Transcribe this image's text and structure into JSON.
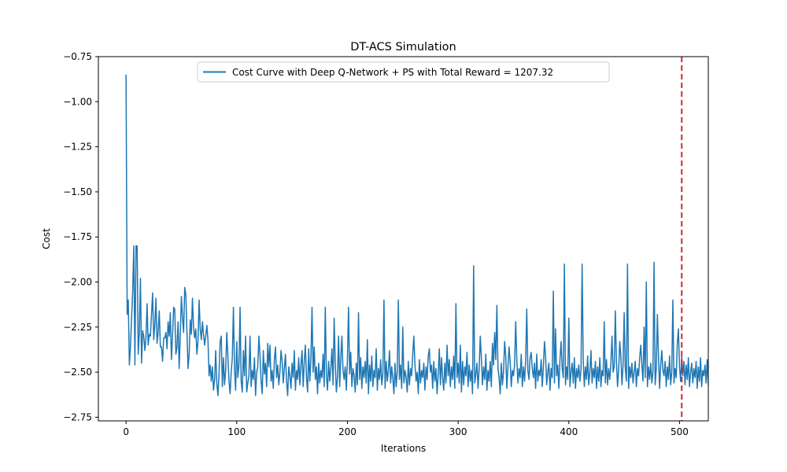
{
  "chart_data": {
    "type": "line",
    "title": "DT-ACS Simulation",
    "xlabel": "Iterations",
    "ylabel": "Cost",
    "xlim": [
      -25,
      526
    ],
    "ylim": [
      -2.77,
      -0.75
    ],
    "x_ticks": [
      0,
      100,
      200,
      300,
      400,
      500
    ],
    "x_tick_labels": [
      "0",
      "100",
      "200",
      "300",
      "400",
      "500"
    ],
    "y_ticks": [
      -2.75,
      -2.5,
      -2.25,
      -2.0,
      -1.75,
      -1.5,
      -1.25,
      -1.0,
      -0.75
    ],
    "y_tick_labels": [
      "−2.75",
      "−2.50",
      "−2.25",
      "−2.00",
      "−1.75",
      "−1.50",
      "−1.25",
      "−1.00",
      "−0.75"
    ],
    "grid": false,
    "legend_position": "upper center",
    "series": [
      {
        "name": "Cost Curve with Deep Q-Network + PS with Total Reward = 1207.32",
        "color": "#1f77b4",
        "x_start": 0,
        "x_step": 1,
        "values": [
          -0.85,
          -2.18,
          -2.1,
          -2.46,
          -2.36,
          -2.2,
          -1.8,
          -2.38,
          -2.46,
          -1.8,
          -2.17,
          -2.4,
          -2.28,
          -2.06,
          -2.45,
          -2.27,
          -2.36,
          -2.38,
          -2.31,
          -2.12,
          -2.35,
          -2.29,
          -2.3,
          -2.18,
          -2.42,
          -2.32,
          -2.24,
          -2.09,
          -2.34,
          -2.28,
          -2.16,
          -2.36,
          -2.36,
          -2.44,
          -2.31,
          -2.31,
          -2.28,
          -2.37,
          -2.22,
          -2.3,
          -2.17,
          -2.43,
          -2.3,
          -2.33,
          -2.15,
          -2.4,
          -2.36,
          -2.22,
          -2.48,
          -2.29,
          -2.03,
          -2.2,
          -2.28,
          -2.34,
          -2.07,
          -2.27,
          -2.48,
          -2.4,
          -2.21,
          -2.29,
          -2.14,
          -2.25,
          -2.31,
          -2.26,
          -2.4,
          -2.33,
          -2.3,
          -2.26,
          -2.32,
          -2.22,
          -2.29,
          -2.35,
          -2.3,
          -2.24,
          -2.32,
          -2.52,
          -2.46,
          -2.55,
          -2.47,
          -2.6,
          -2.54,
          -2.38,
          -2.56,
          -2.63,
          -2.51,
          -2.33,
          -2.45,
          -2.58,
          -2.42,
          -2.57,
          -2.49,
          -2.28,
          -2.41,
          -2.55,
          -2.62,
          -2.5,
          -2.42,
          -2.14,
          -2.48,
          -2.6,
          -2.33,
          -2.53,
          -2.46,
          -2.4,
          -2.55,
          -2.61,
          -2.38,
          -2.52,
          -2.47,
          -2.61,
          -2.56,
          -2.52,
          -2.36,
          -2.58,
          -2.49,
          -2.54,
          -2.42,
          -2.63,
          -2.5,
          -2.47,
          -2.53,
          -2.4,
          -2.55,
          -2.62,
          -2.38,
          -2.51,
          -2.45,
          -2.58,
          -2.34,
          -2.47,
          -2.41,
          -2.55,
          -2.49,
          -2.59,
          -2.43,
          -2.36,
          -2.53,
          -2.46,
          -2.57,
          -2.5,
          -2.61,
          -2.44,
          -2.56,
          -2.48,
          -2.4,
          -2.55,
          -2.63,
          -2.47,
          -2.52,
          -2.59,
          -2.45,
          -2.53,
          -2.38,
          -2.6,
          -2.49,
          -2.54,
          -2.42,
          -2.57,
          -2.46,
          -2.51,
          -2.58,
          -2.44,
          -2.35,
          -2.53,
          -2.61,
          -2.48,
          -2.55,
          -2.43,
          -2.59,
          -2.5,
          -2.36,
          -2.54,
          -2.47,
          -2.62,
          -2.45,
          -2.56,
          -2.49,
          -2.53,
          -2.4,
          -2.58,
          -2.46,
          -2.52,
          -2.6,
          -2.44,
          -2.55,
          -2.48,
          -2.37,
          -2.57,
          -2.5,
          -2.45,
          -2.61,
          -2.53,
          -2.46,
          -2.58,
          -2.42,
          -2.56,
          -2.49,
          -2.54,
          -2.47,
          -2.6,
          -2.43,
          -2.55,
          -2.51,
          -2.39,
          -2.58,
          -2.48,
          -2.52,
          -2.61,
          -2.45,
          -2.57,
          -2.5,
          -2.54,
          -2.42,
          -2.59,
          -2.47,
          -2.53,
          -2.44,
          -2.56,
          -2.5,
          -2.62,
          -2.46,
          -2.55,
          -2.41,
          -2.58,
          -2.49,
          -2.53,
          -2.45,
          -2.6,
          -2.48,
          -2.54,
          -2.43,
          -2.57,
          -2.51,
          -2.46,
          -2.59,
          -2.44,
          -2.55,
          -2.49,
          -2.38,
          -2.56,
          -2.47,
          -2.53,
          -2.62,
          -2.45,
          -2.58,
          -2.5,
          -2.1,
          -2.54,
          -2.46,
          -2.59,
          -2.42,
          -2.56,
          -2.49,
          -2.53,
          -2.61,
          -2.44,
          -2.57,
          -2.48,
          -2.52,
          -2.4,
          -2.58,
          -2.46,
          -2.55,
          -2.5,
          -2.62,
          -2.43,
          -2.56,
          -2.49,
          -2.53,
          -2.45,
          -2.6,
          -2.47,
          -2.54,
          -2.41,
          -2.57,
          -2.5,
          -2.46,
          -2.59,
          -2.44,
          -2.55,
          -2.48,
          -2.62,
          -2.51,
          -2.37,
          -2.57,
          -2.46,
          -2.53,
          -2.6,
          -2.45,
          -2.56,
          -2.49,
          -2.52,
          -2.43,
          -2.58,
          -2.47,
          -2.54,
          -2.41,
          -2.59,
          -2.48,
          -2.53,
          -2.45,
          -2.56,
          -2.5,
          -2.61,
          -2.44,
          -2.57,
          -2.47,
          -2.52,
          -2.39,
          -2.58,
          -2.46,
          -2.55,
          -2.49,
          -2.62,
          -2.43,
          -2.56,
          -2.51,
          -2.45,
          -2.59,
          -2.48,
          -2.53,
          -2.42,
          -2.57,
          -2.47,
          -2.54,
          -2.4,
          -2.6,
          -2.49,
          -2.55,
          -2.44,
          -2.58,
          -2.51,
          -2.46,
          -2.56,
          -2.43,
          -2.59,
          -2.48,
          -2.53,
          -2.62,
          -2.45,
          -2.57,
          -2.5,
          -2.54,
          -2.41,
          -2.59,
          -2.47,
          -2.55,
          -2.44,
          -2.58,
          -2.49,
          -2.52,
          -2.46,
          -2.6,
          -2.43,
          -2.56,
          -2.48,
          -2.53,
          -2.4,
          -2.58,
          -2.47,
          -2.55,
          -2.44,
          -2.61,
          -2.49,
          -2.54,
          -2.42,
          -2.57,
          -2.48,
          -2.53,
          -2.45,
          -2.59,
          -2.46,
          -2.55,
          -2.49,
          -2.52,
          -2.43,
          -2.58,
          -2.47,
          -2.54,
          -2.41,
          -2.57,
          -2.5,
          -2.45,
          -2.6,
          -2.48,
          -2.53,
          -2.44,
          -2.56,
          -2.49,
          -2.52,
          -2.46,
          -2.59,
          -2.43,
          -2.55,
          -2.48,
          -2.53,
          -2.4,
          -2.57,
          -2.47,
          -2.54,
          -2.44,
          -2.58,
          -2.5,
          -2.45,
          -2.56,
          -2.42,
          -2.59,
          -2.48,
          -2.53,
          -2.46,
          -2.55,
          -2.49,
          -2.52,
          -2.43,
          -2.58,
          -2.47,
          -2.54,
          -2.41,
          -2.57,
          -2.5,
          -2.45,
          -2.56,
          -2.48,
          -2.53,
          -2.44,
          -2.59,
          -2.47,
          -2.55,
          -2.42,
          -2.58,
          -2.49,
          -2.52,
          -2.46,
          -2.56,
          -2.43,
          -2.57,
          -2.48,
          -2.54,
          -2.45,
          -2.55,
          -2.5,
          -2.47,
          -2.53,
          -2.44,
          -2.58,
          -2.49,
          -2.52,
          -2.41,
          -2.57,
          -2.46,
          -2.54,
          -2.48,
          -2.55,
          -2.43,
          -2.59,
          -2.47,
          -2.53,
          -2.45,
          -2.56,
          -2.5,
          -2.44,
          -2.58,
          -2.48,
          -2.52,
          -2.42,
          -2.57,
          -2.46,
          -2.55,
          -2.49,
          -2.53,
          -2.43,
          -2.58,
          -2.47,
          -2.54,
          -2.45,
          -2.56,
          -2.5,
          -2.44,
          -2.57,
          -2.48,
          -2.53,
          -2.42,
          -2.59,
          -2.46,
          -2.55,
          -2.49,
          -2.52,
          -2.44,
          -2.58,
          -2.47,
          -2.54,
          -2.41,
          -2.57,
          -2.5,
          -2.45,
          -2.56,
          -2.48,
          -2.53,
          -2.43,
          -2.6,
          -2.47,
          -2.55,
          -2.49,
          -2.52,
          -2.44,
          -2.57,
          -2.46,
          -2.54,
          -2.42,
          -2.58,
          -2.5,
          -2.45,
          -2.56,
          -2.48,
          -2.53,
          -2.44,
          -2.59,
          -2.47,
          -2.55,
          -2.42,
          -2.58,
          -2.49,
          -2.52,
          -2.46,
          -2.56,
          -2.43,
          -2.57,
          -2.48,
          -2.54,
          -2.45,
          -2.55,
          -2.5,
          -2.47
        ],
        "overrides": [
          [
            0,
            -0.85
          ],
          [
            1,
            -2.18
          ],
          [
            2,
            -2.1
          ],
          [
            3,
            -2.46
          ],
          [
            6,
            -2.05
          ],
          [
            7,
            -1.8
          ],
          [
            10,
            -1.8
          ],
          [
            13,
            -1.98
          ],
          [
            16,
            -2.3
          ],
          [
            24,
            -2.06
          ],
          [
            43,
            -2.14
          ],
          [
            50,
            -2.08
          ],
          [
            53,
            -2.03
          ],
          [
            60,
            -2.09
          ],
          [
            66,
            -2.1
          ],
          [
            86,
            -2.3
          ],
          [
            97,
            -2.14
          ],
          [
            103,
            -2.14
          ],
          [
            108,
            -2.3
          ],
          [
            112,
            -2.3
          ],
          [
            120,
            -2.3
          ],
          [
            130,
            -2.35
          ],
          [
            140,
            -2.38
          ],
          [
            159,
            -2.38
          ],
          [
            165,
            -2.37
          ],
          [
            168,
            -2.14
          ],
          [
            180,
            -2.14
          ],
          [
            188,
            -2.2
          ],
          [
            192,
            -2.3
          ],
          [
            195,
            -2.3
          ],
          [
            201,
            -2.14
          ],
          [
            210,
            -2.17
          ],
          [
            218,
            -2.32
          ],
          [
            226,
            -2.37
          ],
          [
            233,
            -2.1
          ],
          [
            250,
            -2.25
          ],
          [
            260,
            -2.3
          ],
          [
            274,
            -2.37
          ],
          [
            285,
            -2.42
          ],
          [
            290,
            -2.35
          ],
          [
            298,
            -2.12
          ],
          [
            302,
            -2.35
          ],
          [
            314,
            -1.91
          ],
          [
            320,
            -2.3
          ],
          [
            331,
            -2.34
          ],
          [
            333,
            -2.28
          ],
          [
            335,
            -2.13
          ],
          [
            342,
            -2.33
          ],
          [
            346,
            -2.36
          ],
          [
            352,
            -2.22
          ],
          [
            362,
            -2.15
          ],
          [
            366,
            -2.39
          ],
          [
            371,
            -2.4
          ],
          [
            378,
            -2.33
          ],
          [
            386,
            -2.05
          ],
          [
            388,
            -2.26
          ],
          [
            393,
            -2.33
          ],
          [
            396,
            -1.9
          ],
          [
            400,
            -2.2
          ],
          [
            412,
            -1.9
          ],
          [
            420,
            -2.38
          ],
          [
            432,
            -2.22
          ],
          [
            439,
            -2.3
          ],
          [
            442,
            -2.16
          ],
          [
            446,
            -2.33
          ],
          [
            450,
            -2.17
          ],
          [
            453,
            -1.9
          ],
          [
            465,
            -2.35
          ],
          [
            468,
            -2.25
          ],
          [
            470,
            -2.0
          ],
          [
            477,
            -1.89
          ],
          [
            480,
            -2.18
          ],
          [
            484,
            -2.38
          ],
          [
            494,
            -2.1
          ],
          [
            498,
            -2.34
          ],
          [
            499,
            -2.26
          ],
          [
            502,
            -2.41
          ]
        ]
      }
    ],
    "vertical_line": {
      "x": 502,
      "color": "#d62728",
      "style": "dashed"
    }
  }
}
